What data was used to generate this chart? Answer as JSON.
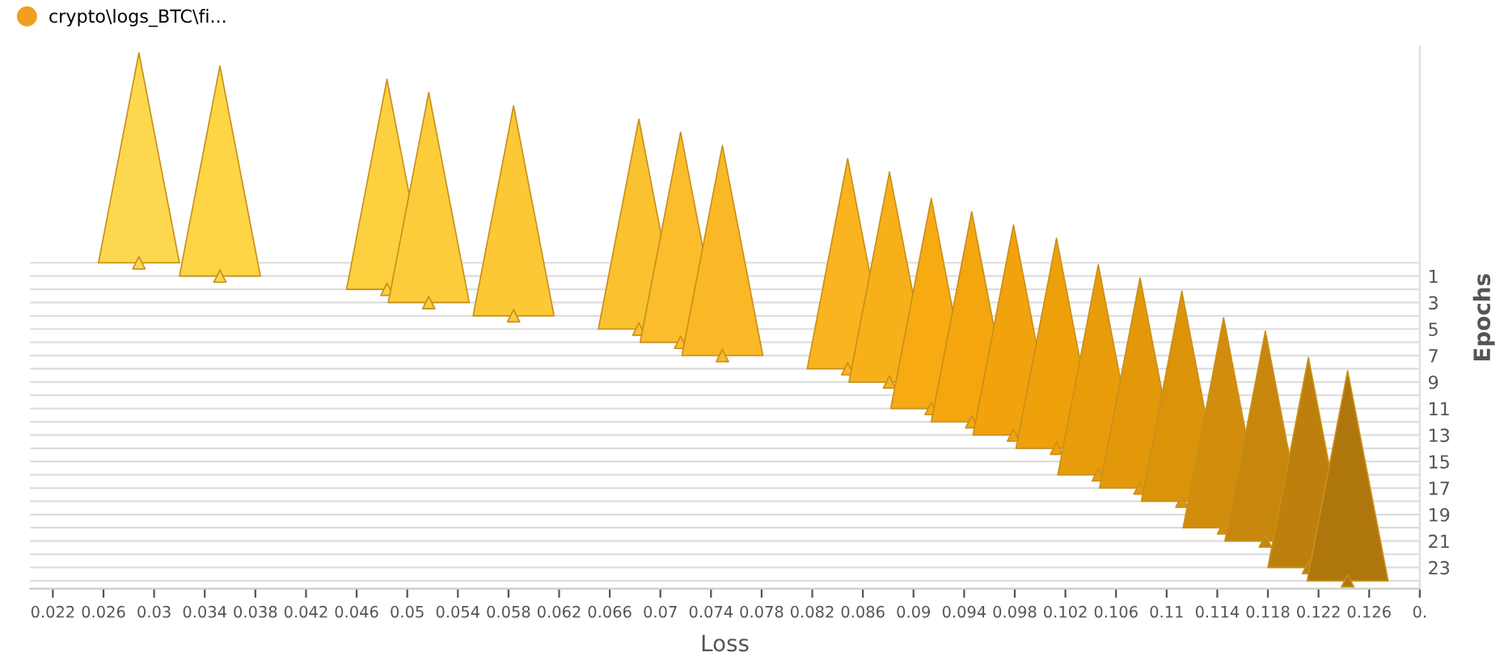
{
  "chart_data": {
    "type": "scatter",
    "xlabel": "Loss",
    "ylabel": "Epochs",
    "marker": "triangle",
    "grid": "y",
    "legend": "top left",
    "xlim": [
      0.0202,
      0.13
    ],
    "xticks": [
      0.022,
      0.026,
      0.03,
      0.034,
      0.038,
      0.042,
      0.046,
      0.05,
      0.054,
      0.058,
      0.062,
      0.066,
      0.07,
      0.074,
      0.078,
      0.082,
      0.086,
      0.09,
      0.094,
      0.098,
      0.102,
      0.106,
      0.11,
      0.114,
      0.118,
      0.122,
      0.126,
      {
        "value": 0.13,
        "label": "0."
      }
    ],
    "ylim": [
      24.6,
      -16.3
    ],
    "yticks": [
      {
        "value": 0,
        "label": null
      },
      1,
      {
        "value": 2,
        "label": null
      },
      3,
      {
        "value": 4,
        "label": null
      },
      5,
      {
        "value": 6,
        "label": null
      },
      7,
      {
        "value": 8,
        "label": null
      },
      9,
      {
        "value": 10,
        "label": null
      },
      11,
      {
        "value": 12,
        "label": null
      },
      13,
      {
        "value": 14,
        "label": null
      },
      15,
      {
        "value": 16,
        "label": null
      },
      17,
      {
        "value": 18,
        "label": null
      },
      19,
      {
        "value": 20,
        "label": null
      },
      21,
      {
        "value": 22,
        "label": null
      },
      23,
      {
        "value": 24,
        "label": null
      }
    ],
    "series": [
      {
        "name": "crypto\\logs_BTC\\fi...",
        "color": "#f0a020",
        "x": [
          0.0288,
          0.0352,
          0.0484,
          0.0517,
          0.0584,
          0.0683,
          0.0716,
          0.0749,
          0.0848,
          0.0881,
          0.0914,
          0.0946,
          0.0979,
          0.1013,
          0.1046,
          0.1079,
          0.1112,
          0.1145,
          0.1178,
          0.1212,
          0.1243
        ],
        "values": [
          0,
          1,
          2,
          3,
          4,
          5,
          6,
          7,
          8,
          9,
          11,
          12,
          13,
          14,
          16,
          17,
          18,
          20,
          21,
          23,
          24
        ],
        "colors": [
          "#fdd84e",
          "#fdd545",
          "#fcd03f",
          "#fccc3a",
          "#fcc835",
          "#fbc230",
          "#fbbd2b",
          "#fab826",
          "#f9b41f",
          "#f8b01a",
          "#f7aa12",
          "#f5a60e",
          "#f2a20c",
          "#eea00b",
          "#e99c0a",
          "#e3980a",
          "#db930a",
          "#d18d0b",
          "#c7860c",
          "#bd800d",
          "#b0760e"
        ]
      }
    ]
  }
}
